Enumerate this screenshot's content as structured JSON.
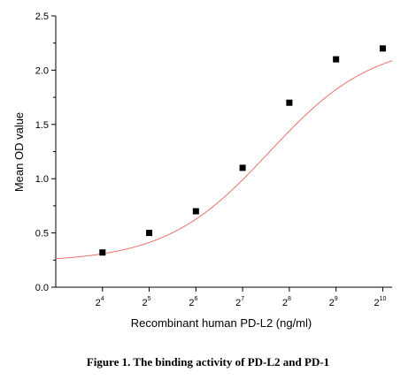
{
  "caption": "Figure 1. The binding activity of PD-L2 and PD-1",
  "chart_data": {
    "type": "scatter",
    "xlabel": "Recombinant human PD-L2 (ng/ml)",
    "ylabel": "Mean OD value",
    "x_scale": "log2",
    "x_ticks": [
      {
        "base": "2",
        "exp": "4"
      },
      {
        "base": "2",
        "exp": "5"
      },
      {
        "base": "2",
        "exp": "6"
      },
      {
        "base": "2",
        "exp": "7"
      },
      {
        "base": "2",
        "exp": "8"
      },
      {
        "base": "2",
        "exp": "9"
      },
      {
        "base": "2",
        "exp": "10"
      }
    ],
    "y_ticks": [
      "0.0",
      "0.5",
      "1.0",
      "1.5",
      "2.0",
      "2.5"
    ],
    "ylim": [
      0,
      2.5
    ],
    "series": [
      {
        "marker": "square",
        "color": "#000000",
        "points": [
          {
            "x": 16,
            "y": 0.32
          },
          {
            "x": 32,
            "y": 0.5
          },
          {
            "x": 64,
            "y": 0.7
          },
          {
            "x": 128,
            "y": 1.1
          },
          {
            "x": 256,
            "y": 1.7
          },
          {
            "x": 512,
            "y": 2.1
          },
          {
            "x": 1024,
            "y": 2.2
          }
        ]
      }
    ],
    "fit_curve": {
      "type": "logistic",
      "color": "#e8736b",
      "bottom": 0.23,
      "top": 2.26,
      "ec50": 190,
      "hill": 1.3
    }
  }
}
